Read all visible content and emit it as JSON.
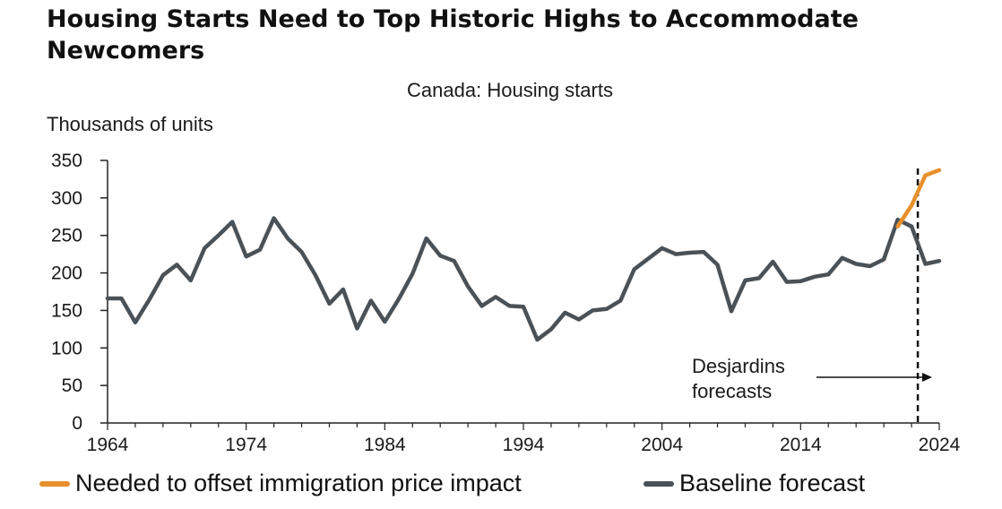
{
  "title": "Housing Starts Need to Top Historic Highs to Accommodate Newcomers",
  "chart_data": {
    "type": "line",
    "title": "Canada: Housing starts",
    "ylabel": "Thousands of units",
    "xlabel": "",
    "xlim": [
      1964,
      2024
    ],
    "ylim": [
      0,
      350
    ],
    "x_ticks": [
      1964,
      1974,
      1984,
      1994,
      2004,
      2014,
      2024
    ],
    "y_ticks": [
      0,
      50,
      100,
      150,
      200,
      250,
      300,
      350
    ],
    "grid": false,
    "legend_position": "bottom",
    "forecast_start": 2022,
    "annotation": {
      "line1": "Desjardins",
      "line2": "forecasts"
    },
    "series": [
      {
        "name": "Baseline forecast",
        "color": "#4a5258",
        "x": [
          1964,
          1965,
          1966,
          1967,
          1968,
          1969,
          1970,
          1971,
          1972,
          1973,
          1974,
          1975,
          1976,
          1977,
          1978,
          1979,
          1980,
          1981,
          1982,
          1983,
          1984,
          1985,
          1986,
          1987,
          1988,
          1989,
          1990,
          1991,
          1992,
          1993,
          1994,
          1995,
          1996,
          1997,
          1998,
          1999,
          2000,
          2001,
          2002,
          2003,
          2004,
          2005,
          2006,
          2007,
          2008,
          2009,
          2010,
          2011,
          2012,
          2013,
          2014,
          2015,
          2016,
          2017,
          2018,
          2019,
          2020,
          2021,
          2022,
          2023,
          2024
        ],
        "values": [
          166,
          166,
          134,
          164,
          197,
          211,
          190,
          233,
          250,
          268,
          222,
          231,
          273,
          246,
          228,
          197,
          159,
          178,
          126,
          163,
          135,
          165,
          199,
          246,
          223,
          216,
          182,
          156,
          168,
          156,
          155,
          111,
          125,
          147,
          138,
          150,
          152,
          163,
          205,
          219,
          233,
          225,
          227,
          228,
          211,
          149,
          190,
          193,
          215,
          188,
          189,
          195,
          198,
          220,
          212,
          209,
          218,
          271,
          262,
          212,
          216
        ]
      },
      {
        "name": "Needed to offset immigration price impact",
        "color": "#e8902c",
        "x": [
          2021,
          2022,
          2023,
          2024
        ],
        "values": [
          262,
          290,
          330,
          337
        ]
      }
    ]
  },
  "legend": [
    {
      "label": "Needed to offset immigration price impact",
      "color": "#e8902c"
    },
    {
      "label": "Baseline forecast",
      "color": "#4a5258"
    }
  ]
}
